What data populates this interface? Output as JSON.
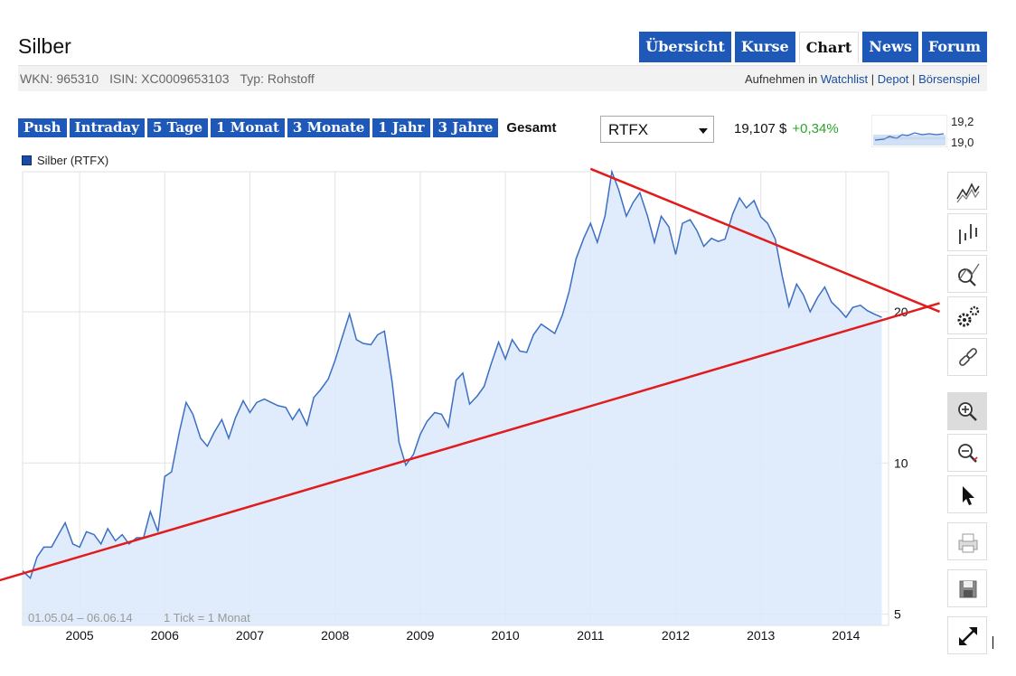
{
  "header": {
    "title": "Silber",
    "wkn": "WKN: 965310",
    "isin": "ISIN: XC0009653103",
    "typ": "Typ: Rohstoff",
    "watchlist_prefix": "Aufnehmen in",
    "watchlist_links": [
      "Watchlist",
      "Depot",
      "Börsenspiel"
    ],
    "separator": "|"
  },
  "nav": {
    "tabs": [
      "Übersicht",
      "Kurse",
      "Chart",
      "News",
      "Forum"
    ],
    "active": "Chart"
  },
  "ranges": {
    "items": [
      "Push",
      "Intraday",
      "5 Tage",
      "1 Monat",
      "3 Monate",
      "1 Jahr",
      "3 Jahre",
      "Gesamt"
    ],
    "active": "Gesamt"
  },
  "quote": {
    "exchange": "RTFX",
    "price": "19,107 $",
    "change": "+0,34%",
    "mini_top": "19,2",
    "mini_bottom": "19,0"
  },
  "toolbar": {
    "icons": [
      "line-chart-icon",
      "candlestick-icon",
      "indicator-icon",
      "settings-gears-icon",
      "link-icon",
      "zoom-in-icon",
      "zoom-out-icon",
      "pointer-icon",
      "print-icon",
      "save-icon",
      "fullscreen-icon"
    ]
  },
  "colors": {
    "nav_blue": "#1e58b8",
    "series_line": "#3b6fc4",
    "area_fill": "#dde9fb",
    "trend_line": "#e01c1c",
    "positive": "#2da52d"
  },
  "chart_data": {
    "type": "area",
    "scale": "log",
    "legend": [
      "Silber (RTFX)"
    ],
    "y_ticks": [
      5,
      10,
      20
    ],
    "y_tick_labels": [
      "5",
      "10",
      "20"
    ],
    "ylim": [
      4.75,
      38
    ],
    "xlim": [
      2004.33,
      2014.5
    ],
    "x_ticks": [
      2005,
      2006,
      2007,
      2008,
      2009,
      2010,
      2011,
      2012,
      2013,
      2014
    ],
    "x_tick_labels": [
      "2005",
      "2006",
      "2007",
      "2008",
      "2009",
      "2010",
      "2011",
      "2012",
      "2013",
      "2014"
    ],
    "range_label": "01.05.04 – 06.06.14",
    "tick_label": "1 Tick = 1 Monat",
    "series": [
      {
        "name": "Silber (RTFX)",
        "x": [
          2004.33,
          2004.42,
          2004.5,
          2004.58,
          2004.67,
          2004.75,
          2004.83,
          2004.92,
          2005.0,
          2005.08,
          2005.17,
          2005.25,
          2005.33,
          2005.42,
          2005.5,
          2005.58,
          2005.67,
          2005.75,
          2005.83,
          2005.92,
          2006.0,
          2006.08,
          2006.17,
          2006.25,
          2006.33,
          2006.42,
          2006.5,
          2006.58,
          2006.67,
          2006.75,
          2006.83,
          2006.92,
          2007.0,
          2007.08,
          2007.17,
          2007.25,
          2007.33,
          2007.42,
          2007.5,
          2007.58,
          2007.67,
          2007.75,
          2007.83,
          2007.92,
          2008.0,
          2008.08,
          2008.17,
          2008.25,
          2008.33,
          2008.42,
          2008.5,
          2008.58,
          2008.67,
          2008.75,
          2008.83,
          2008.92,
          2009.0,
          2009.08,
          2009.17,
          2009.25,
          2009.33,
          2009.42,
          2009.5,
          2009.58,
          2009.67,
          2009.75,
          2009.83,
          2009.92,
          2010.0,
          2010.08,
          2010.17,
          2010.25,
          2010.33,
          2010.42,
          2010.5,
          2010.58,
          2010.67,
          2010.75,
          2010.83,
          2010.92,
          2011.0,
          2011.08,
          2011.17,
          2011.25,
          2011.33,
          2011.42,
          2011.5,
          2011.58,
          2011.67,
          2011.75,
          2011.83,
          2011.92,
          2012.0,
          2012.08,
          2012.17,
          2012.25,
          2012.33,
          2012.42,
          2012.5,
          2012.58,
          2012.67,
          2012.75,
          2012.83,
          2012.92,
          2013.0,
          2013.08,
          2013.17,
          2013.25,
          2013.33,
          2013.42,
          2013.5,
          2013.58,
          2013.67,
          2013.75,
          2013.83,
          2013.92,
          2014.0,
          2014.08,
          2014.17,
          2014.25,
          2014.33,
          2014.42
        ],
        "values": [
          6.1,
          5.9,
          6.5,
          6.8,
          6.8,
          7.2,
          7.6,
          6.9,
          6.8,
          7.3,
          7.2,
          6.9,
          7.4,
          7.0,
          7.2,
          6.9,
          7.1,
          7.1,
          8.0,
          7.3,
          9.4,
          9.6,
          11.5,
          13.2,
          12.5,
          11.2,
          10.8,
          11.5,
          12.2,
          11.2,
          12.3,
          13.3,
          12.6,
          13.2,
          13.4,
          13.2,
          13.0,
          12.9,
          12.2,
          12.8,
          11.9,
          13.5,
          14.0,
          14.7,
          16.0,
          17.7,
          19.8,
          17.6,
          17.3,
          17.2,
          18.0,
          18.3,
          14.5,
          11.0,
          9.9,
          10.4,
          11.4,
          12.1,
          12.6,
          12.5,
          11.8,
          14.6,
          15.1,
          13.1,
          13.6,
          14.2,
          15.7,
          17.4,
          16.1,
          17.6,
          16.7,
          16.6,
          18.0,
          18.9,
          18.5,
          18.1,
          19.7,
          22.0,
          25.5,
          28.0,
          30.0,
          27.5,
          31.0,
          38.0,
          35.0,
          31.0,
          33.0,
          34.5,
          31.0,
          27.5,
          31.0,
          29.5,
          26.0,
          30.0,
          30.5,
          29.0,
          27.0,
          28.0,
          27.6,
          27.9,
          31.3,
          33.7,
          32.2,
          33.3,
          30.9,
          30.0,
          27.9,
          23.6,
          20.5,
          22.7,
          21.6,
          20.0,
          21.4,
          22.4,
          20.9,
          20.2,
          19.5,
          20.4,
          20.6,
          20.1,
          19.8,
          19.5
        ]
      }
    ],
    "annotations": [
      {
        "type": "trendline",
        "from": [
          2004.0,
          5.8
        ],
        "to": [
          2015.1,
          20.8
        ]
      },
      {
        "type": "trendline",
        "from": [
          2011.0,
          38.5
        ],
        "to": [
          2015.1,
          20.0
        ]
      }
    ]
  }
}
